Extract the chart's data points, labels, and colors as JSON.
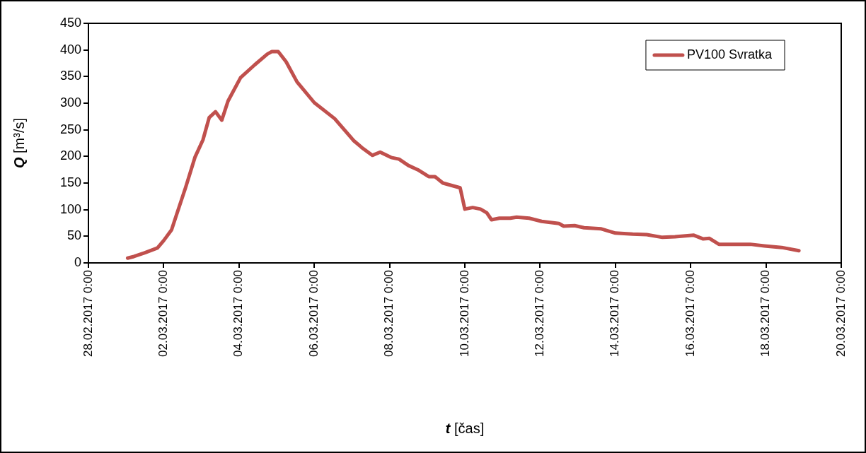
{
  "chart_data": {
    "type": "line",
    "xlabel": "t [čas]",
    "ylabel": "Q [m³/s]",
    "x": [
      "2017-03-01T01:00",
      "2017-03-01T05:00",
      "2017-03-01T12:00",
      "2017-03-01T20:00",
      "2017-03-02T00:00",
      "2017-03-02T05:00",
      "2017-03-02T08:00",
      "2017-03-02T14:00",
      "2017-03-02T20:00",
      "2017-03-03T01:00",
      "2017-03-03T05:00",
      "2017-03-03T09:00",
      "2017-03-03T13:00",
      "2017-03-03T17:00",
      "2017-03-04T01:00",
      "2017-03-04T10:00",
      "2017-03-04T18:00",
      "2017-03-04T21:00",
      "2017-03-05T01:00",
      "2017-03-05T06:00",
      "2017-03-05T13:00",
      "2017-03-06T00:00",
      "2017-03-06T13:00",
      "2017-03-07T01:00",
      "2017-03-07T07:00",
      "2017-03-07T13:00",
      "2017-03-07T18:00",
      "2017-03-08T01:00",
      "2017-03-08T06:00",
      "2017-03-08T12:00",
      "2017-03-08T18:00",
      "2017-03-09T01:00",
      "2017-03-09T05:00",
      "2017-03-09T10:00",
      "2017-03-09T21:00",
      "2017-03-10T00:00",
      "2017-03-10T05:00",
      "2017-03-10T10:00",
      "2017-03-10T14:00",
      "2017-03-10T17:00",
      "2017-03-10T22:00",
      "2017-03-11T05:00",
      "2017-03-11T09:00",
      "2017-03-11T17:00",
      "2017-03-12T01:00",
      "2017-03-12T12:00",
      "2017-03-12T15:00",
      "2017-03-12T22:00",
      "2017-03-13T04:00",
      "2017-03-13T15:00",
      "2017-03-14T00:00",
      "2017-03-14T11:00",
      "2017-03-14T20:00",
      "2017-03-15T06:00",
      "2017-03-15T14:00",
      "2017-03-16T02:00",
      "2017-03-16T08:00",
      "2017-03-16T12:00",
      "2017-03-16T18:00",
      "2017-03-17T14:00",
      "2017-03-17T23:00",
      "2017-03-18T10:00",
      "2017-03-18T21:00"
    ],
    "series": [
      {
        "name": "PV100 Svratka",
        "color": "#c0504d",
        "values": [
          9,
          12,
          19,
          28,
          42,
          62,
          89,
          142,
          199,
          231,
          273,
          284,
          268,
          304,
          348,
          372,
          392,
          397,
          397,
          378,
          340,
          301,
          271,
          230,
          215,
          202,
          208,
          198,
          195,
          183,
          175,
          162,
          162,
          150,
          141,
          101,
          104,
          101,
          94,
          81,
          84,
          84,
          86,
          84,
          78,
          74,
          69,
          70,
          66,
          64,
          56,
          54,
          53,
          48,
          49,
          52,
          45,
          46,
          35,
          35,
          32,
          29,
          23
        ]
      }
    ],
    "xlim": [
      "2017-02-28T00:00",
      "2017-03-20T00:00"
    ],
    "xticks": [
      {
        "value": "2017-02-28T00:00",
        "label": "28.02.2017 0:00"
      },
      {
        "value": "2017-03-02T00:00",
        "label": "02.03.2017 0:00"
      },
      {
        "value": "2017-03-04T00:00",
        "label": "04.03.2017 0:00"
      },
      {
        "value": "2017-03-06T00:00",
        "label": "06.03.2017 0:00"
      },
      {
        "value": "2017-03-08T00:00",
        "label": "08.03.2017 0:00"
      },
      {
        "value": "2017-03-10T00:00",
        "label": "10.03.2017 0:00"
      },
      {
        "value": "2017-03-12T00:00",
        "label": "12.03.2017 0:00"
      },
      {
        "value": "2017-03-14T00:00",
        "label": "14.03.2017 0:00"
      },
      {
        "value": "2017-03-16T00:00",
        "label": "16.03.2017 0:00"
      },
      {
        "value": "2017-03-18T00:00",
        "label": "18.03.2017 0:00"
      },
      {
        "value": "2017-03-20T00:00",
        "label": "20.03.2017 0:00"
      }
    ],
    "ylim": [
      0,
      450
    ],
    "yticks": [
      0,
      50,
      100,
      150,
      200,
      250,
      300,
      350,
      400,
      450
    ],
    "grid": false,
    "legend": "top right",
    "marker": "none",
    "line_style": "solid"
  }
}
